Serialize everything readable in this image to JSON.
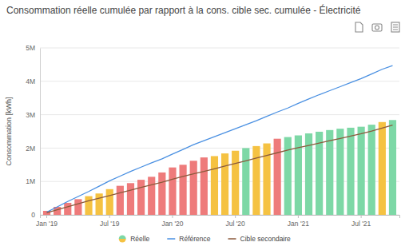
{
  "chart_data": {
    "type": "bar",
    "title": "Consommation réelle cumulée par rapport à la cons. cible sec. cumulée - Électricité",
    "y_label": "Consommation [kWh]",
    "categories": [
      "Jan '19",
      null,
      null,
      null,
      null,
      null,
      "Jul '19",
      null,
      null,
      null,
      null,
      null,
      "Jan '20",
      null,
      null,
      null,
      null,
      null,
      "Jul '20",
      null,
      null,
      null,
      null,
      null,
      "Jan '21",
      null,
      null,
      null,
      null,
      null,
      "Jul '21",
      null,
      null,
      null
    ],
    "series": [
      {
        "name": "Réelle",
        "type": "bar",
        "values": [
          120000,
          240000,
          360000,
          470000,
          560000,
          640000,
          770000,
          870000,
          950000,
          1050000,
          1140000,
          1270000,
          1420000,
          1500000,
          1620000,
          1720000,
          1760000,
          1840000,
          1920000,
          2000000,
          2060000,
          2140000,
          2280000,
          2330000,
          2380000,
          2440000,
          2490000,
          2540000,
          2580000,
          2610000,
          2640000,
          2700000,
          2780000,
          2840000
        ],
        "colors": [
          "#ee7b7b",
          "#ee7b7b",
          "#ee7b7b",
          "#ee7b7b",
          "#f5c242",
          "#f5c242",
          "#f5c242",
          "#ee7b7b",
          "#ee7b7b",
          "#ee7b7b",
          "#ee7b7b",
          "#ee7b7b",
          "#ee7b7b",
          "#ee7b7b",
          "#ee7b7b",
          "#ee7b7b",
          "#f5c242",
          "#f5c242",
          "#f5c242",
          "#7dd8a6",
          "#f5c242",
          "#f5c242",
          "#ee7b7b",
          "#7dd8a6",
          "#7dd8a6",
          "#7dd8a6",
          "#7dd8a6",
          "#7dd8a6",
          "#7dd8a6",
          "#7dd8a6",
          "#7dd8a6",
          "#7dd8a6",
          "#f5c242",
          "#7dd8a6"
        ]
      },
      {
        "name": "Référence",
        "type": "line",
        "color": "#4a90e2",
        "values": [
          80000,
          240000,
          400000,
          550000,
          700000,
          860000,
          1020000,
          1160000,
          1300000,
          1430000,
          1560000,
          1680000,
          1820000,
          1960000,
          2100000,
          2220000,
          2340000,
          2460000,
          2580000,
          2700000,
          2820000,
          2950000,
          3080000,
          3200000,
          3340000,
          3470000,
          3600000,
          3720000,
          3840000,
          3960000,
          4080000,
          4220000,
          4360000,
          4470000
        ]
      },
      {
        "name": "Cible secondaire",
        "type": "line",
        "color": "#8b5a3c",
        "values": [
          60000,
          150000,
          240000,
          330000,
          420000,
          500000,
          580000,
          660000,
          740000,
          820000,
          900000,
          980000,
          1070000,
          1150000,
          1230000,
          1300000,
          1380000,
          1460000,
          1540000,
          1620000,
          1700000,
          1780000,
          1860000,
          1940000,
          2010000,
          2080000,
          2150000,
          2220000,
          2290000,
          2360000,
          2430000,
          2510000,
          2600000,
          2690000
        ]
      }
    ],
    "ylim": [
      0,
      5000000
    ],
    "yticks": [
      0,
      {
        "value": 1000000,
        "label": "1M"
      },
      {
        "value": 2000000,
        "label": "2M"
      },
      {
        "value": 3000000,
        "label": "3M"
      },
      {
        "value": 4000000,
        "label": "4M"
      },
      {
        "value": 5000000,
        "label": "5M"
      }
    ],
    "grid": true,
    "legend": "bottom"
  }
}
